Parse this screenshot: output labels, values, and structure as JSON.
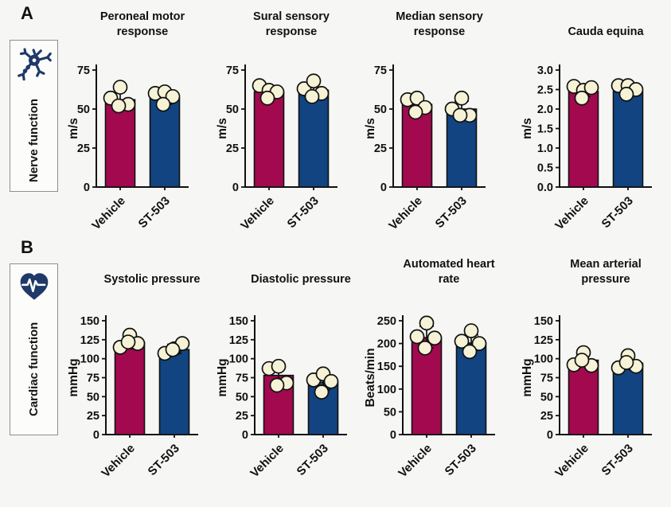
{
  "colors": {
    "background": "#f6f6f4",
    "bar_colors": {
      "Vehicle": "#A2094F",
      "ST-503": "#114480"
    },
    "point_fill": "#F6F2D6",
    "outline": "#111111",
    "icon_navy": "#1F3A68",
    "sidebar_border": "#8f8f8f",
    "sidebar_bg": "#fcfcfb"
  },
  "panels": [
    {
      "label": "A",
      "category_label": "Nerve function",
      "icon": "neuron-icon",
      "chart_indexes": [
        0,
        1,
        2,
        3
      ]
    },
    {
      "label": "B",
      "category_label": "Cardiac function",
      "icon": "heart-ecg-icon",
      "chart_indexes": [
        4,
        5,
        6,
        7
      ]
    }
  ],
  "chart_data": [
    {
      "type": "bar",
      "panel": "A",
      "title": "Peroneal motor response",
      "title_lines": [
        "Peroneal motor",
        "response"
      ],
      "ylabel": "m/s",
      "ylim": [
        0,
        75
      ],
      "ytick_step": 25,
      "categories": [
        "Vehicle",
        "ST-503"
      ],
      "bars": [
        {
          "category": "Vehicle",
          "mean": 56,
          "error_low": 52,
          "error_high": 63,
          "points": [
            57,
            64,
            53,
            52
          ]
        },
        {
          "category": "ST-503",
          "mean": 57,
          "error_low": 53,
          "error_high": 61,
          "points": [
            60,
            61,
            58,
            53
          ]
        }
      ]
    },
    {
      "type": "bar",
      "panel": "A",
      "title": "Sural sensory response",
      "title_lines": [
        "Sural sensory",
        "response"
      ],
      "ylabel": "m/s",
      "ylim": [
        0,
        75
      ],
      "ytick_step": 25,
      "categories": [
        "Vehicle",
        "ST-503"
      ],
      "bars": [
        {
          "category": "Vehicle",
          "mean": 61,
          "error_low": 58,
          "error_high": 65,
          "points": [
            65,
            62,
            61,
            57
          ]
        },
        {
          "category": "ST-503",
          "mean": 62,
          "error_low": 58,
          "error_high": 67,
          "points": [
            63,
            68,
            60,
            58
          ]
        }
      ]
    },
    {
      "type": "bar",
      "panel": "A",
      "title": "Median sensory response",
      "title_lines": [
        "Median sensory",
        "response"
      ],
      "ylabel": "m/s",
      "ylim": [
        0,
        75
      ],
      "ytick_step": 25,
      "categories": [
        "Vehicle",
        "ST-503"
      ],
      "bars": [
        {
          "category": "Vehicle",
          "mean": 53,
          "error_low": 49,
          "error_high": 57,
          "points": [
            56,
            57,
            51,
            48
          ]
        },
        {
          "category": "ST-503",
          "mean": 50,
          "error_low": 45,
          "error_high": 55,
          "points": [
            50,
            57,
            46,
            46
          ]
        }
      ]
    },
    {
      "type": "bar",
      "panel": "A",
      "title": "Cauda equina",
      "title_lines": [
        "Cauda equina"
      ],
      "ylabel": "m/s",
      "ylim": [
        0,
        3.0
      ],
      "ytick_step": 0.5,
      "categories": [
        "Vehicle",
        "ST-503"
      ],
      "bars": [
        {
          "category": "Vehicle",
          "mean": 2.45,
          "error_low": 2.32,
          "error_high": 2.6,
          "points": [
            2.58,
            2.48,
            2.55,
            2.28
          ]
        },
        {
          "category": "ST-503",
          "mean": 2.45,
          "error_low": 2.35,
          "error_high": 2.62,
          "points": [
            2.6,
            2.6,
            2.5,
            2.38
          ]
        }
      ]
    },
    {
      "type": "bar",
      "panel": "B",
      "title": "Systolic pressure",
      "title_lines": [
        "Systolic pressure"
      ],
      "ylabel": "mmHg",
      "ylim": [
        0,
        150
      ],
      "ytick_step": 25,
      "categories": [
        "Vehicle",
        "ST-503"
      ],
      "bars": [
        {
          "category": "Vehicle",
          "mean": 121,
          "error_low": 113,
          "error_high": 130,
          "points": [
            115,
            131,
            120,
            122
          ]
        },
        {
          "category": "ST-503",
          "mean": 112,
          "error_low": 107,
          "error_high": 119,
          "points": [
            107,
            113,
            120,
            112
          ]
        }
      ]
    },
    {
      "type": "bar",
      "panel": "B",
      "title": "Diastolic pressure",
      "title_lines": [
        "Diastolic pressure"
      ],
      "ylabel": "mmHg",
      "ylim": [
        0,
        150
      ],
      "ytick_step": 25,
      "categories": [
        "Vehicle",
        "ST-503"
      ],
      "bars": [
        {
          "category": "Vehicle",
          "mean": 78,
          "error_low": 68,
          "error_high": 90,
          "points": [
            87,
            90,
            68,
            65
          ]
        },
        {
          "category": "ST-503",
          "mean": 69,
          "error_low": 59,
          "error_high": 80,
          "points": [
            72,
            80,
            70,
            56
          ]
        }
      ]
    },
    {
      "type": "bar",
      "panel": "B",
      "title": "Automated heart rate",
      "title_lines": [
        "Automated heart",
        "rate"
      ],
      "ylabel": "Beats/min",
      "ylim": [
        0,
        250
      ],
      "ytick_step": 50,
      "categories": [
        "Vehicle",
        "ST-503"
      ],
      "bars": [
        {
          "category": "Vehicle",
          "mean": 213,
          "error_low": 190,
          "error_high": 238,
          "points": [
            215,
            245,
            212,
            190
          ]
        },
        {
          "category": "ST-503",
          "mean": 201,
          "error_low": 185,
          "error_high": 219,
          "points": [
            205,
            228,
            200,
            182
          ]
        }
      ]
    },
    {
      "type": "bar",
      "panel": "B",
      "title": "Mean arterial pressure",
      "title_lines": [
        "Mean arterial",
        "pressure"
      ],
      "ylabel": "mmHg",
      "ylim": [
        0,
        150
      ],
      "ytick_step": 25,
      "categories": [
        "Vehicle",
        "ST-503"
      ],
      "bars": [
        {
          "category": "Vehicle",
          "mean": 98,
          "error_low": 90,
          "error_high": 107,
          "points": [
            92,
            108,
            91,
            98
          ]
        },
        {
          "category": "ST-503",
          "mean": 94,
          "error_low": 86,
          "error_high": 102,
          "points": [
            88,
            104,
            90,
            95
          ]
        }
      ]
    }
  ]
}
